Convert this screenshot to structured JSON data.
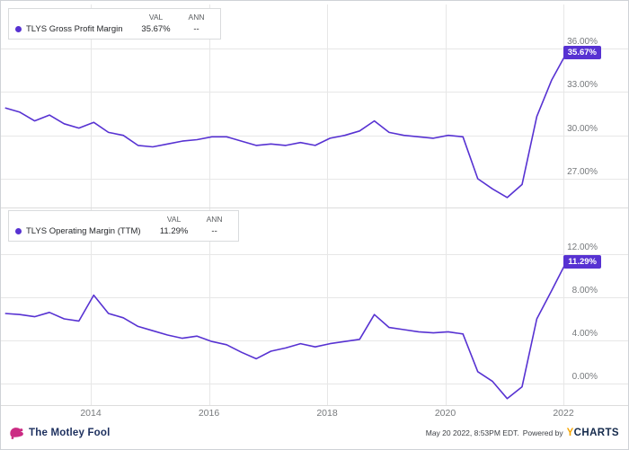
{
  "colors": {
    "line": "#5732d2",
    "grid": "#e7e7e7",
    "divider": "#dcdcdc",
    "axis_text": "#76797c"
  },
  "x_axis": {
    "ticks": [
      2014,
      2016,
      2018,
      2020,
      2022
    ],
    "labels": [
      "2014",
      "2016",
      "2018",
      "2020",
      "2022"
    ],
    "xlim": [
      2012.55,
      2022.05
    ]
  },
  "footer": {
    "brand": "The Motley Fool",
    "timestamp": "May 20 2022, 8:53PM EDT.",
    "powered_by": "Powered by",
    "ycharts_y": "Y",
    "ycharts_charts": "CHARTS"
  },
  "chart_data": [
    {
      "type": "line",
      "title": "TLYS Gross Profit Margin",
      "legend": {
        "name": "TLYS Gross Profit Margin",
        "val_header": "VAL",
        "ann_header": "ANN",
        "val": "35.67%",
        "ann": "--"
      },
      "end_label": "35.67%",
      "line_color": "#5732d2",
      "yticks": [
        36,
        33,
        30,
        27
      ],
      "ytick_labels": [
        "36.00%",
        "33.00%",
        "30.00%",
        "27.00%"
      ],
      "ylim": [
        25.0,
        38.0
      ],
      "xlim": [
        2012.55,
        2022.05
      ],
      "grid": true,
      "legend_position": "top-left",
      "x": [
        2012.55,
        2012.8,
        2013.05,
        2013.3,
        2013.55,
        2013.8,
        2014.05,
        2014.3,
        2014.55,
        2014.8,
        2015.05,
        2015.3,
        2015.55,
        2015.8,
        2016.05,
        2016.3,
        2016.55,
        2016.8,
        2017.05,
        2017.3,
        2017.55,
        2017.8,
        2018.05,
        2018.3,
        2018.55,
        2018.8,
        2019.05,
        2019.3,
        2019.55,
        2019.8,
        2020.05,
        2020.3,
        2020.55,
        2020.8,
        2021.05,
        2021.3,
        2021.55,
        2021.8,
        2022.05
      ],
      "values": [
        31.9,
        31.6,
        31.0,
        31.4,
        30.8,
        30.5,
        30.9,
        30.2,
        30.0,
        29.3,
        29.2,
        29.4,
        29.6,
        29.7,
        29.9,
        29.9,
        29.6,
        29.3,
        29.4,
        29.3,
        29.5,
        29.3,
        29.8,
        30.0,
        30.3,
        31.0,
        30.2,
        30.0,
        29.9,
        29.8,
        30.0,
        29.9,
        27.0,
        26.3,
        25.7,
        26.6,
        31.3,
        33.8,
        35.67
      ]
    },
    {
      "type": "line",
      "title": "TLYS Operating Margin (TTM)",
      "legend": {
        "name": "TLYS Operating Margin (TTM)",
        "val_header": "VAL",
        "ann_header": "ANN",
        "val": "11.29%",
        "ann": "--"
      },
      "end_label": "11.29%",
      "line_color": "#5732d2",
      "yticks": [
        12,
        8,
        4,
        0
      ],
      "ytick_labels": [
        "12.00%",
        "8.00%",
        "4.00%",
        "0.00%"
      ],
      "ylim": [
        -2.0,
        14.0
      ],
      "xlim": [
        2012.55,
        2022.05
      ],
      "grid": true,
      "legend_position": "top-left",
      "x": [
        2012.55,
        2012.8,
        2013.05,
        2013.3,
        2013.55,
        2013.8,
        2014.05,
        2014.3,
        2014.55,
        2014.8,
        2015.05,
        2015.3,
        2015.55,
        2015.8,
        2016.05,
        2016.3,
        2016.55,
        2016.8,
        2017.05,
        2017.3,
        2017.55,
        2017.8,
        2018.05,
        2018.3,
        2018.55,
        2018.8,
        2019.05,
        2019.3,
        2019.55,
        2019.8,
        2020.05,
        2020.3,
        2020.55,
        2020.8,
        2021.05,
        2021.3,
        2021.55,
        2021.8,
        2022.05
      ],
      "values": [
        6.5,
        6.4,
        6.2,
        6.6,
        6.0,
        5.8,
        8.2,
        6.5,
        6.1,
        5.3,
        4.9,
        4.5,
        4.2,
        4.4,
        3.9,
        3.6,
        2.9,
        2.3,
        3.0,
        3.3,
        3.7,
        3.4,
        3.7,
        3.9,
        4.1,
        6.4,
        5.2,
        5.0,
        4.8,
        4.7,
        4.8,
        4.6,
        1.1,
        0.2,
        -1.4,
        -0.3,
        6.0,
        8.6,
        11.29
      ]
    }
  ]
}
